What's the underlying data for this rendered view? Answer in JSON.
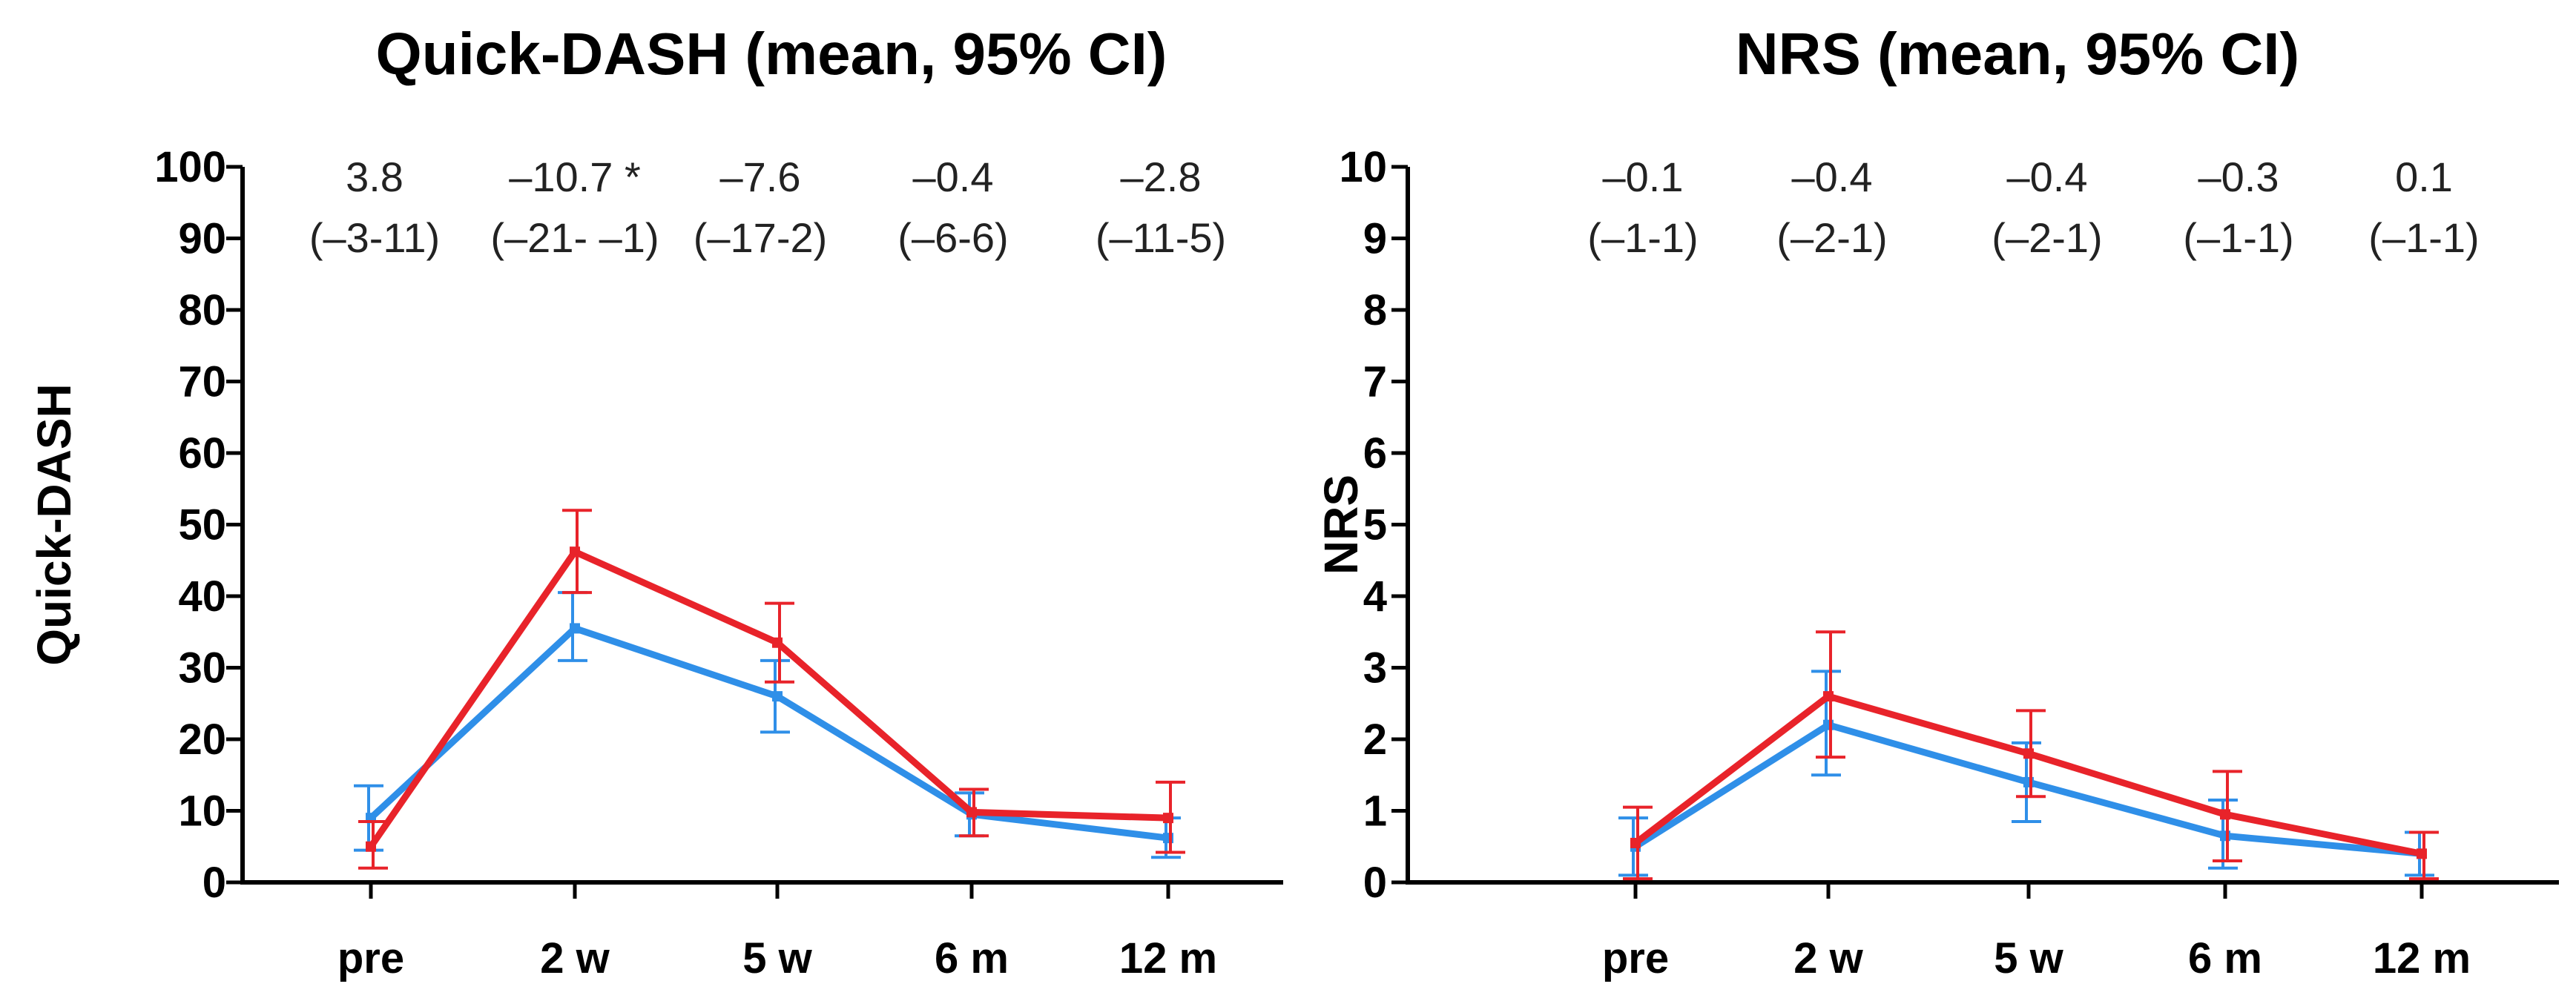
{
  "chart_data": [
    {
      "type": "line",
      "title": "Quick-DASH (mean, 95% CI)",
      "xlabel": "",
      "ylabel": "Quick-DASH",
      "categories": [
        "pre",
        "2 w",
        "5 w",
        "6 m",
        "12 m"
      ],
      "ylim": [
        0,
        100
      ],
      "yticks": [
        0,
        10,
        20,
        30,
        40,
        50,
        60,
        70,
        80,
        90,
        100
      ],
      "grid": false,
      "series": [
        {
          "name": "blue group",
          "color": "#2f8fe8",
          "values": [
            9,
            35.5,
            26,
            9.5,
            6.2
          ],
          "ci_low": [
            4.5,
            31,
            21,
            6.5,
            3.5
          ],
          "ci_high": [
            13.5,
            40.5,
            31,
            12.5,
            9
          ]
        },
        {
          "name": "red group",
          "color": "#e8232a",
          "values": [
            5,
            46.2,
            33.5,
            9.8,
            9
          ],
          "ci_low": [
            2,
            40.5,
            28,
            6.5,
            4.2
          ],
          "ci_high": [
            8.5,
            52,
            39,
            13,
            14
          ]
        }
      ],
      "annotations": [
        {
          "line1": "3.8",
          "line2": "(–3-11)"
        },
        {
          "line1": "–10.7 *",
          "line2": "(–21- –1)"
        },
        {
          "line1": "–7.6",
          "line2": "(–17-2)"
        },
        {
          "line1": "–0.4",
          "line2": "(–6-6)"
        },
        {
          "line1": "–2.8",
          "line2": "(–11-5)"
        }
      ]
    },
    {
      "type": "line",
      "title": "NRS (mean, 95% CI)",
      "xlabel": "",
      "ylabel": "NRS",
      "categories": [
        "pre",
        "2 w",
        "5 w",
        "6 m",
        "12 m"
      ],
      "ylim": [
        0,
        10
      ],
      "yticks": [
        0,
        1,
        2,
        3,
        4,
        5,
        6,
        7,
        8,
        9,
        10
      ],
      "grid": false,
      "series": [
        {
          "name": "blue group",
          "color": "#2f8fe8",
          "values": [
            0.5,
            2.2,
            1.4,
            0.65,
            0.4
          ],
          "ci_low": [
            0.1,
            1.5,
            0.85,
            0.2,
            0.1
          ],
          "ci_high": [
            0.9,
            2.95,
            1.95,
            1.15,
            0.7
          ]
        },
        {
          "name": "red group",
          "color": "#e8232a",
          "values": [
            0.55,
            2.6,
            1.8,
            0.95,
            0.4
          ],
          "ci_low": [
            0.05,
            1.75,
            1.2,
            0.3,
            0.05
          ],
          "ci_high": [
            1.05,
            3.5,
            2.4,
            1.55,
            0.7
          ]
        }
      ],
      "annotations": [
        {
          "line1": "–0.1",
          "line2": "(–1-1)"
        },
        {
          "line1": "–0.4",
          "line2": "(–2-1)"
        },
        {
          "line1": "–0.4",
          "line2": "(–2-1)"
        },
        {
          "line1": "–0.3",
          "line2": "(–1-1)"
        },
        {
          "line1": "0.1",
          "line2": "(–1-1)"
        }
      ]
    }
  ]
}
